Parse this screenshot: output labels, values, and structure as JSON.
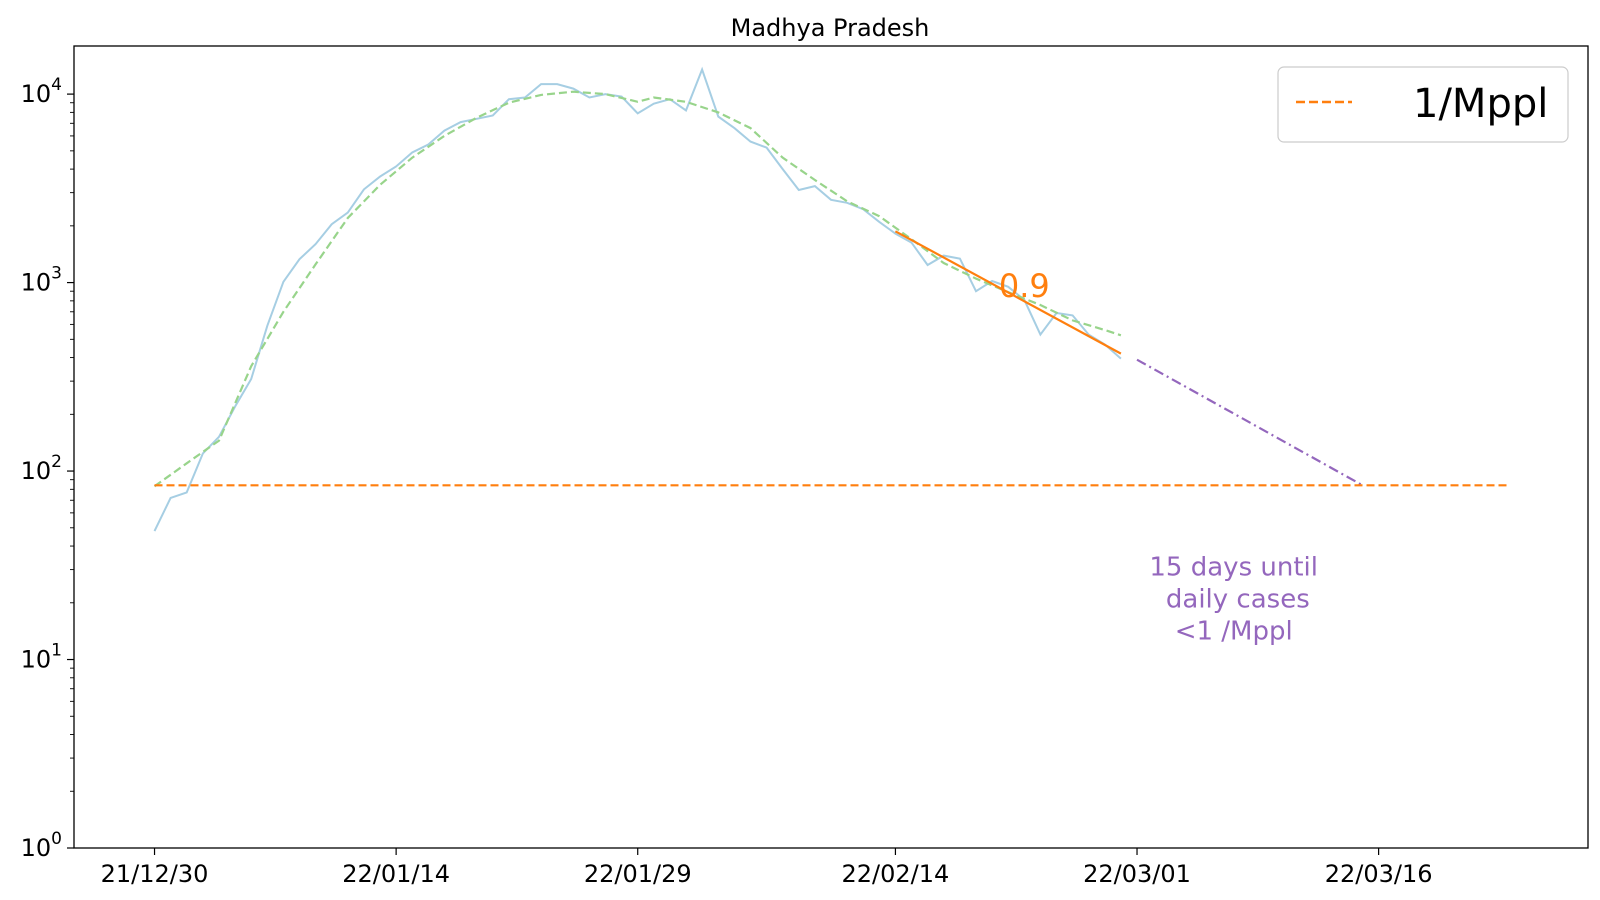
{
  "chart_data": {
    "type": "line",
    "title": "Madhya Pradesh",
    "xlabel": "",
    "ylabel": "",
    "yscale": "log",
    "ylim": [
      1,
      18000
    ],
    "xlim": [
      "2021-12-25",
      "2022-03-29"
    ],
    "x_ticks": [
      {
        "date": "2021-12-30",
        "label": "21/12/30"
      },
      {
        "date": "2022-01-14",
        "label": "22/01/14"
      },
      {
        "date": "2022-01-29",
        "label": "22/01/29"
      },
      {
        "date": "2022-02-14",
        "label": "22/02/14"
      },
      {
        "date": "2022-03-01",
        "label": "22/03/01"
      },
      {
        "date": "2022-03-16",
        "label": "22/03/16"
      }
    ],
    "y_ticks": [
      {
        "value": 1,
        "base": "10",
        "exp": "0"
      },
      {
        "value": 10,
        "base": "10",
        "exp": "1"
      },
      {
        "value": 100,
        "base": "10",
        "exp": "2"
      },
      {
        "value": 1000,
        "base": "10",
        "exp": "3"
      },
      {
        "value": 10000,
        "base": "10",
        "exp": "4"
      }
    ],
    "grid": false,
    "legend": {
      "position": "top-right",
      "entries": [
        {
          "label": "1/Mppl",
          "color": "#ff7f0e",
          "style": "dashed"
        }
      ]
    },
    "series": [
      {
        "color": "#a6cee3",
        "style": "solid",
        "points": [
          [
            "2021-12-30",
            48
          ],
          [
            "2021-12-31",
            72
          ],
          [
            "2022-01-01",
            77
          ],
          [
            "2022-01-02",
            124
          ],
          [
            "2022-01-03",
            152
          ],
          [
            "2022-01-04",
            220
          ],
          [
            "2022-01-05",
            308
          ],
          [
            "2022-01-06",
            590
          ],
          [
            "2022-01-07",
            1010
          ],
          [
            "2022-01-08",
            1330
          ],
          [
            "2022-01-09",
            1600
          ],
          [
            "2022-01-10",
            2040
          ],
          [
            "2022-01-11",
            2350
          ],
          [
            "2022-01-12",
            3120
          ],
          [
            "2022-01-13",
            3650
          ],
          [
            "2022-01-14",
            4130
          ],
          [
            "2022-01-15",
            4900
          ],
          [
            "2022-01-16",
            5400
          ],
          [
            "2022-01-17",
            6400
          ],
          [
            "2022-01-18",
            7100
          ],
          [
            "2022-01-19",
            7400
          ],
          [
            "2022-01-20",
            7700
          ],
          [
            "2022-01-21",
            9400
          ],
          [
            "2022-01-22",
            9600
          ],
          [
            "2022-01-23",
            11300
          ],
          [
            "2022-01-24",
            11300
          ],
          [
            "2022-01-25",
            10700
          ],
          [
            "2022-01-26",
            9600
          ],
          [
            "2022-01-27",
            10000
          ],
          [
            "2022-01-28",
            9700
          ],
          [
            "2022-01-29",
            7900
          ],
          [
            "2022-01-30",
            8900
          ],
          [
            "2022-01-31",
            9400
          ],
          [
            "2022-02-01",
            8200
          ],
          [
            "2022-02-02",
            13500
          ],
          [
            "2022-02-03",
            7600
          ],
          [
            "2022-02-04",
            6600
          ],
          [
            "2022-02-05",
            5600
          ],
          [
            "2022-02-06",
            5200
          ],
          [
            "2022-02-07",
            4000
          ],
          [
            "2022-02-08",
            3100
          ],
          [
            "2022-02-09",
            3250
          ],
          [
            "2022-02-10",
            2750
          ],
          [
            "2022-02-11",
            2650
          ],
          [
            "2022-02-12",
            2450
          ],
          [
            "2022-02-13",
            2100
          ],
          [
            "2022-02-14",
            1820
          ],
          [
            "2022-02-15",
            1630
          ],
          [
            "2022-02-16",
            1240
          ],
          [
            "2022-02-17",
            1390
          ],
          [
            "2022-02-18",
            1340
          ],
          [
            "2022-02-19",
            900
          ],
          [
            "2022-02-20",
            1020
          ],
          [
            "2022-02-21",
            950
          ],
          [
            "2022-02-22",
            810
          ],
          [
            "2022-02-23",
            530
          ],
          [
            "2022-02-24",
            690
          ],
          [
            "2022-02-25",
            670
          ],
          [
            "2022-02-26",
            530
          ],
          [
            "2022-02-27",
            470
          ],
          [
            "2022-02-28",
            395
          ]
        ]
      },
      {
        "color": "#98d48b",
        "style": "dashed",
        "points": [
          [
            "2021-12-30",
            83
          ],
          [
            "2022-01-01",
            110
          ],
          [
            "2022-01-03",
            145
          ],
          [
            "2022-01-05",
            360
          ],
          [
            "2022-01-07",
            700
          ],
          [
            "2022-01-09",
            1250
          ],
          [
            "2022-01-11",
            2200
          ],
          [
            "2022-01-13",
            3300
          ],
          [
            "2022-01-15",
            4600
          ],
          [
            "2022-01-17",
            6000
          ],
          [
            "2022-01-19",
            7500
          ],
          [
            "2022-01-21",
            9000
          ],
          [
            "2022-01-23",
            9900
          ],
          [
            "2022-01-25",
            10300
          ],
          [
            "2022-01-27",
            10000
          ],
          [
            "2022-01-29",
            9100
          ],
          [
            "2022-01-30",
            9600
          ],
          [
            "2022-02-01",
            9100
          ],
          [
            "2022-02-03",
            8000
          ],
          [
            "2022-02-05",
            6600
          ],
          [
            "2022-02-07",
            4600
          ],
          [
            "2022-02-09",
            3500
          ],
          [
            "2022-02-11",
            2700
          ],
          [
            "2022-02-13",
            2250
          ],
          [
            "2022-02-15",
            1700
          ],
          [
            "2022-02-17",
            1270
          ],
          [
            "2022-02-19",
            1050
          ],
          [
            "2022-02-21",
            890
          ],
          [
            "2022-02-23",
            760
          ],
          [
            "2022-02-25",
            630
          ],
          [
            "2022-02-27",
            560
          ],
          [
            "2022-02-28",
            525
          ]
        ]
      },
      {
        "color": "#ff7f0e",
        "style": "solid",
        "points": [
          [
            "2022-02-14",
            1870
          ],
          [
            "2022-02-28",
            420
          ]
        ]
      },
      {
        "color": "#9467bd",
        "style": "dashdot",
        "points": [
          [
            "2022-03-01",
            390
          ],
          [
            "2022-03-15",
            84
          ]
        ]
      },
      {
        "name": "1/Mppl",
        "color": "#ff7f0e",
        "style": "dashed",
        "points": [
          [
            "2021-12-30",
            84
          ],
          [
            "2022-03-24",
            84
          ]
        ]
      }
    ],
    "annotations": [
      {
        "text_lines": [
          "0.9"
        ],
        "color": "#ff7f0e",
        "at": [
          "2022-02-22",
          840
        ],
        "size": "large"
      },
      {
        "text_lines": [
          "15 days until",
          " daily cases",
          "<1 /Mppl"
        ],
        "color": "#9467bd",
        "at": [
          "2022-03-07",
          28
        ]
      }
    ]
  }
}
